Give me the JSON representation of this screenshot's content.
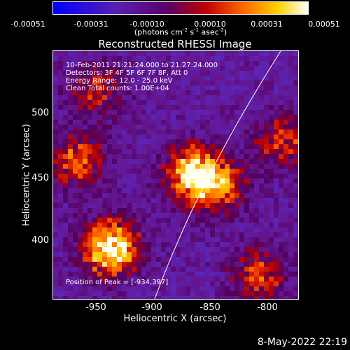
{
  "colorbar": {
    "ticks": [
      "-0.00051",
      "-0.00031",
      "-0.00010",
      "0.00010",
      "0.00031",
      "0.00051"
    ],
    "units_prefix": "(photons cm",
    "units_sup1": "-2",
    "units_mid1": " s",
    "units_sup2": "-1",
    "units_mid2": " asec",
    "units_sup3": "-2",
    "units_suffix": ")"
  },
  "title": "Reconstructed RHESSI Image",
  "info": {
    "line1": "10-Feb-2011 21:21:24.000 to 21:27:24.000",
    "line2": "Detectors: 3F 4F 5F 6F 7F 8F, Att 0",
    "line3": "Energy Range: 12.0 - 25.0 keV",
    "line4": "Clean    Total counts: 1.00E+04"
  },
  "peak": "Position of Peak = [-934,397]",
  "chart_data": {
    "type": "heatmap",
    "xlabel": "Heliocentric X (arcsec)",
    "ylabel": "Heliocentric Y (arcsec)",
    "xticks": [
      "-950",
      "-900",
      "-850",
      "-800"
    ],
    "yticks": [
      "500",
      "450",
      "400"
    ],
    "xlim": [
      -977,
      -787
    ],
    "ylim": [
      356,
      548
    ],
    "colormap": "blue-purple-red-yellow-white",
    "sources": [
      {
        "x": -934,
        "y": 397,
        "intensity": 1.0
      },
      {
        "x": -870,
        "y": 455,
        "intensity": 0.9
      },
      {
        "x": -960,
        "y": 465,
        "intensity": 0.55
      },
      {
        "x": -850,
        "y": 445,
        "intensity": 0.55
      },
      {
        "x": -800,
        "y": 480,
        "intensity": 0.5
      },
      {
        "x": -820,
        "y": 375,
        "intensity": 0.5
      },
      {
        "x": -945,
        "y": 520,
        "intensity": 0.45
      }
    ],
    "limb_curve": true
  },
  "timestamp": "8-May-2022 22:19"
}
